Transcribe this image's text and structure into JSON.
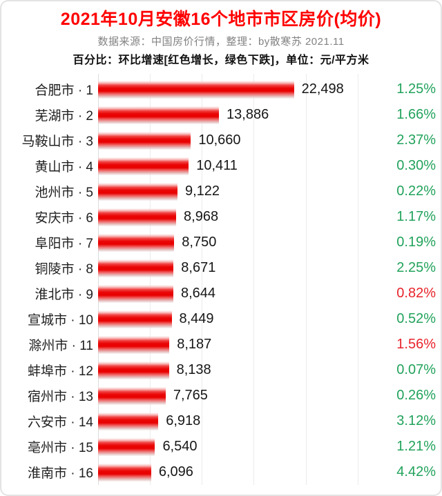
{
  "header": {
    "title": "2021年10月安徽16个地市市区房价(均价)",
    "subtitle": "数据来源：中国房价行情，整理：by散寒苏 2021.11",
    "note": "百分比：环比增速[红色增长，绿色下跌]，单位：元/平方米"
  },
  "colors": {
    "title_red": "#ff0000",
    "subtitle_gray": "#828282",
    "bar_red": "#e80000",
    "pct_growth_red": "#e8232b",
    "pct_decline_green": "#21a25b",
    "gridline": "#ebebeb"
  },
  "chart_data": {
    "type": "bar",
    "orientation": "horizontal",
    "title": "2021年10月安徽16个地市市区房价(均价)",
    "unit": "元/平方米",
    "legend_note": "环比增速：红色增长，绿色下跌",
    "axis": {
      "min": 0,
      "max": 33000,
      "grid_step": 5000,
      "gridlines_visible": true
    },
    "categories": [
      "合肥市 · 1",
      "芜湖市 · 2",
      "马鞍山市 · 3",
      "黄山市 · 4",
      "池州市 · 5",
      "安庆市 · 6",
      "阜阳市 · 7",
      "铜陵市 · 8",
      "淮北市 · 9",
      "宣城市 · 10",
      "滁州市 · 11",
      "蚌埠市 · 12",
      "宿州市 · 13",
      "六安市 · 14",
      "亳州市 · 15",
      "淮南市 · 16"
    ],
    "values": [
      22498,
      13886,
      10660,
      10411,
      9122,
      8968,
      8750,
      8671,
      8644,
      8449,
      8187,
      8138,
      7765,
      6918,
      6540,
      6096
    ],
    "value_labels": [
      "22,498",
      "13,886",
      "10,660",
      "10,411",
      "9,122",
      "8,968",
      "8,750",
      "8,671",
      "8,644",
      "8,449",
      "8,187",
      "8,138",
      "7,765",
      "6,918",
      "6,540",
      "6,096"
    ],
    "change_labels": [
      "1.25%",
      "1.66%",
      "2.37%",
      "0.30%",
      "0.22%",
      "1.17%",
      "0.19%",
      "2.25%",
      "0.82%",
      "0.52%",
      "1.56%",
      "0.07%",
      "0.26%",
      "3.12%",
      "1.21%",
      "4.42%"
    ],
    "change_trend": [
      "down",
      "down",
      "down",
      "down",
      "down",
      "down",
      "down",
      "down",
      "up",
      "down",
      "up",
      "down",
      "down",
      "down",
      "down",
      "down"
    ]
  }
}
